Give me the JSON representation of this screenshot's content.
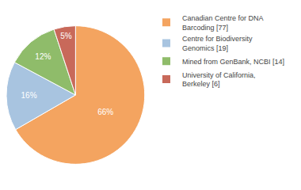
{
  "chart_data": {
    "type": "pie",
    "categories": [
      "Canadian Centre for DNA\nBarcoding [77]",
      "Centre for Biodiversity\nGenomics [19]",
      "Mined from GenBank, NCBI [14]",
      "University of California,\nBerkeley [6]"
    ],
    "values": [
      66,
      16,
      12,
      5
    ],
    "value_labels": [
      "66%",
      "16%",
      "12%",
      "5%"
    ],
    "data_labels": true,
    "colors": [
      "#F4A460",
      "#A8C4E0",
      "#8FBC6A",
      "#C8695A"
    ],
    "legend": "right"
  }
}
